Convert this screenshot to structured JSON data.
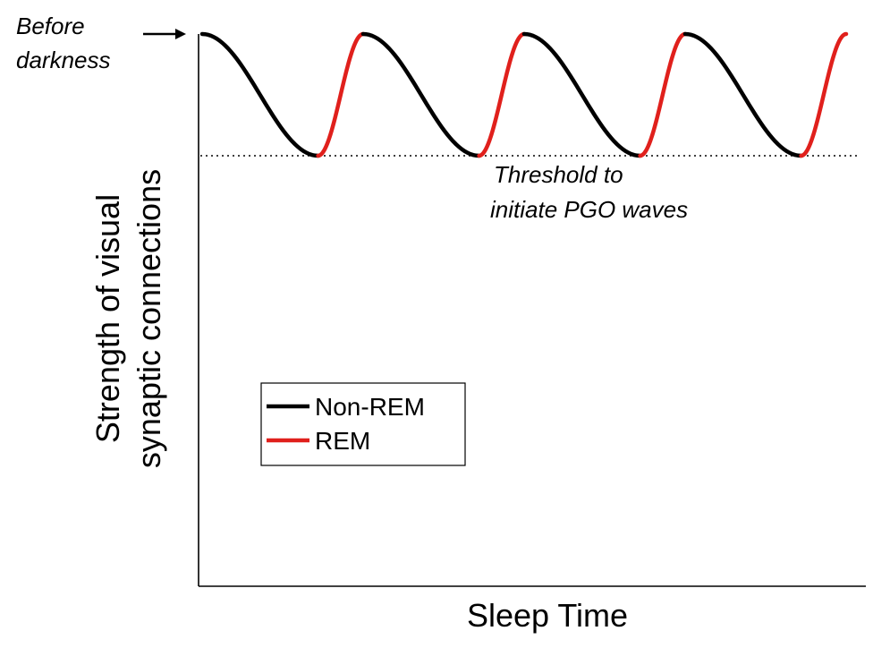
{
  "chart_data": {
    "type": "line",
    "title": "",
    "xlabel": "Sleep Time",
    "ylabel_lines": [
      "Strength of visual",
      "synaptic connections"
    ],
    "x_ticks": false,
    "y_ticks": false,
    "grid": false,
    "xlim": [
      0,
      4
    ],
    "ylim": [
      0,
      1
    ],
    "cycle": {
      "period": 1,
      "peak": 1,
      "trough": 0.78,
      "nonrem_fraction": 0.72,
      "start_value": 1
    },
    "series": [
      {
        "name": "Non-REM",
        "color": "#000000"
      },
      {
        "name": "REM",
        "color": "#e0201c"
      }
    ],
    "threshold": {
      "value": 0.78,
      "style": "dotted",
      "label_lines": [
        "Threshold to",
        "initiate PGO waves"
      ]
    },
    "start_annotation": {
      "label_lines": [
        "Before",
        "darkness"
      ],
      "arrow": true
    },
    "legend": {
      "placement": "lower-left",
      "entries": [
        "Non-REM",
        "REM"
      ]
    }
  }
}
